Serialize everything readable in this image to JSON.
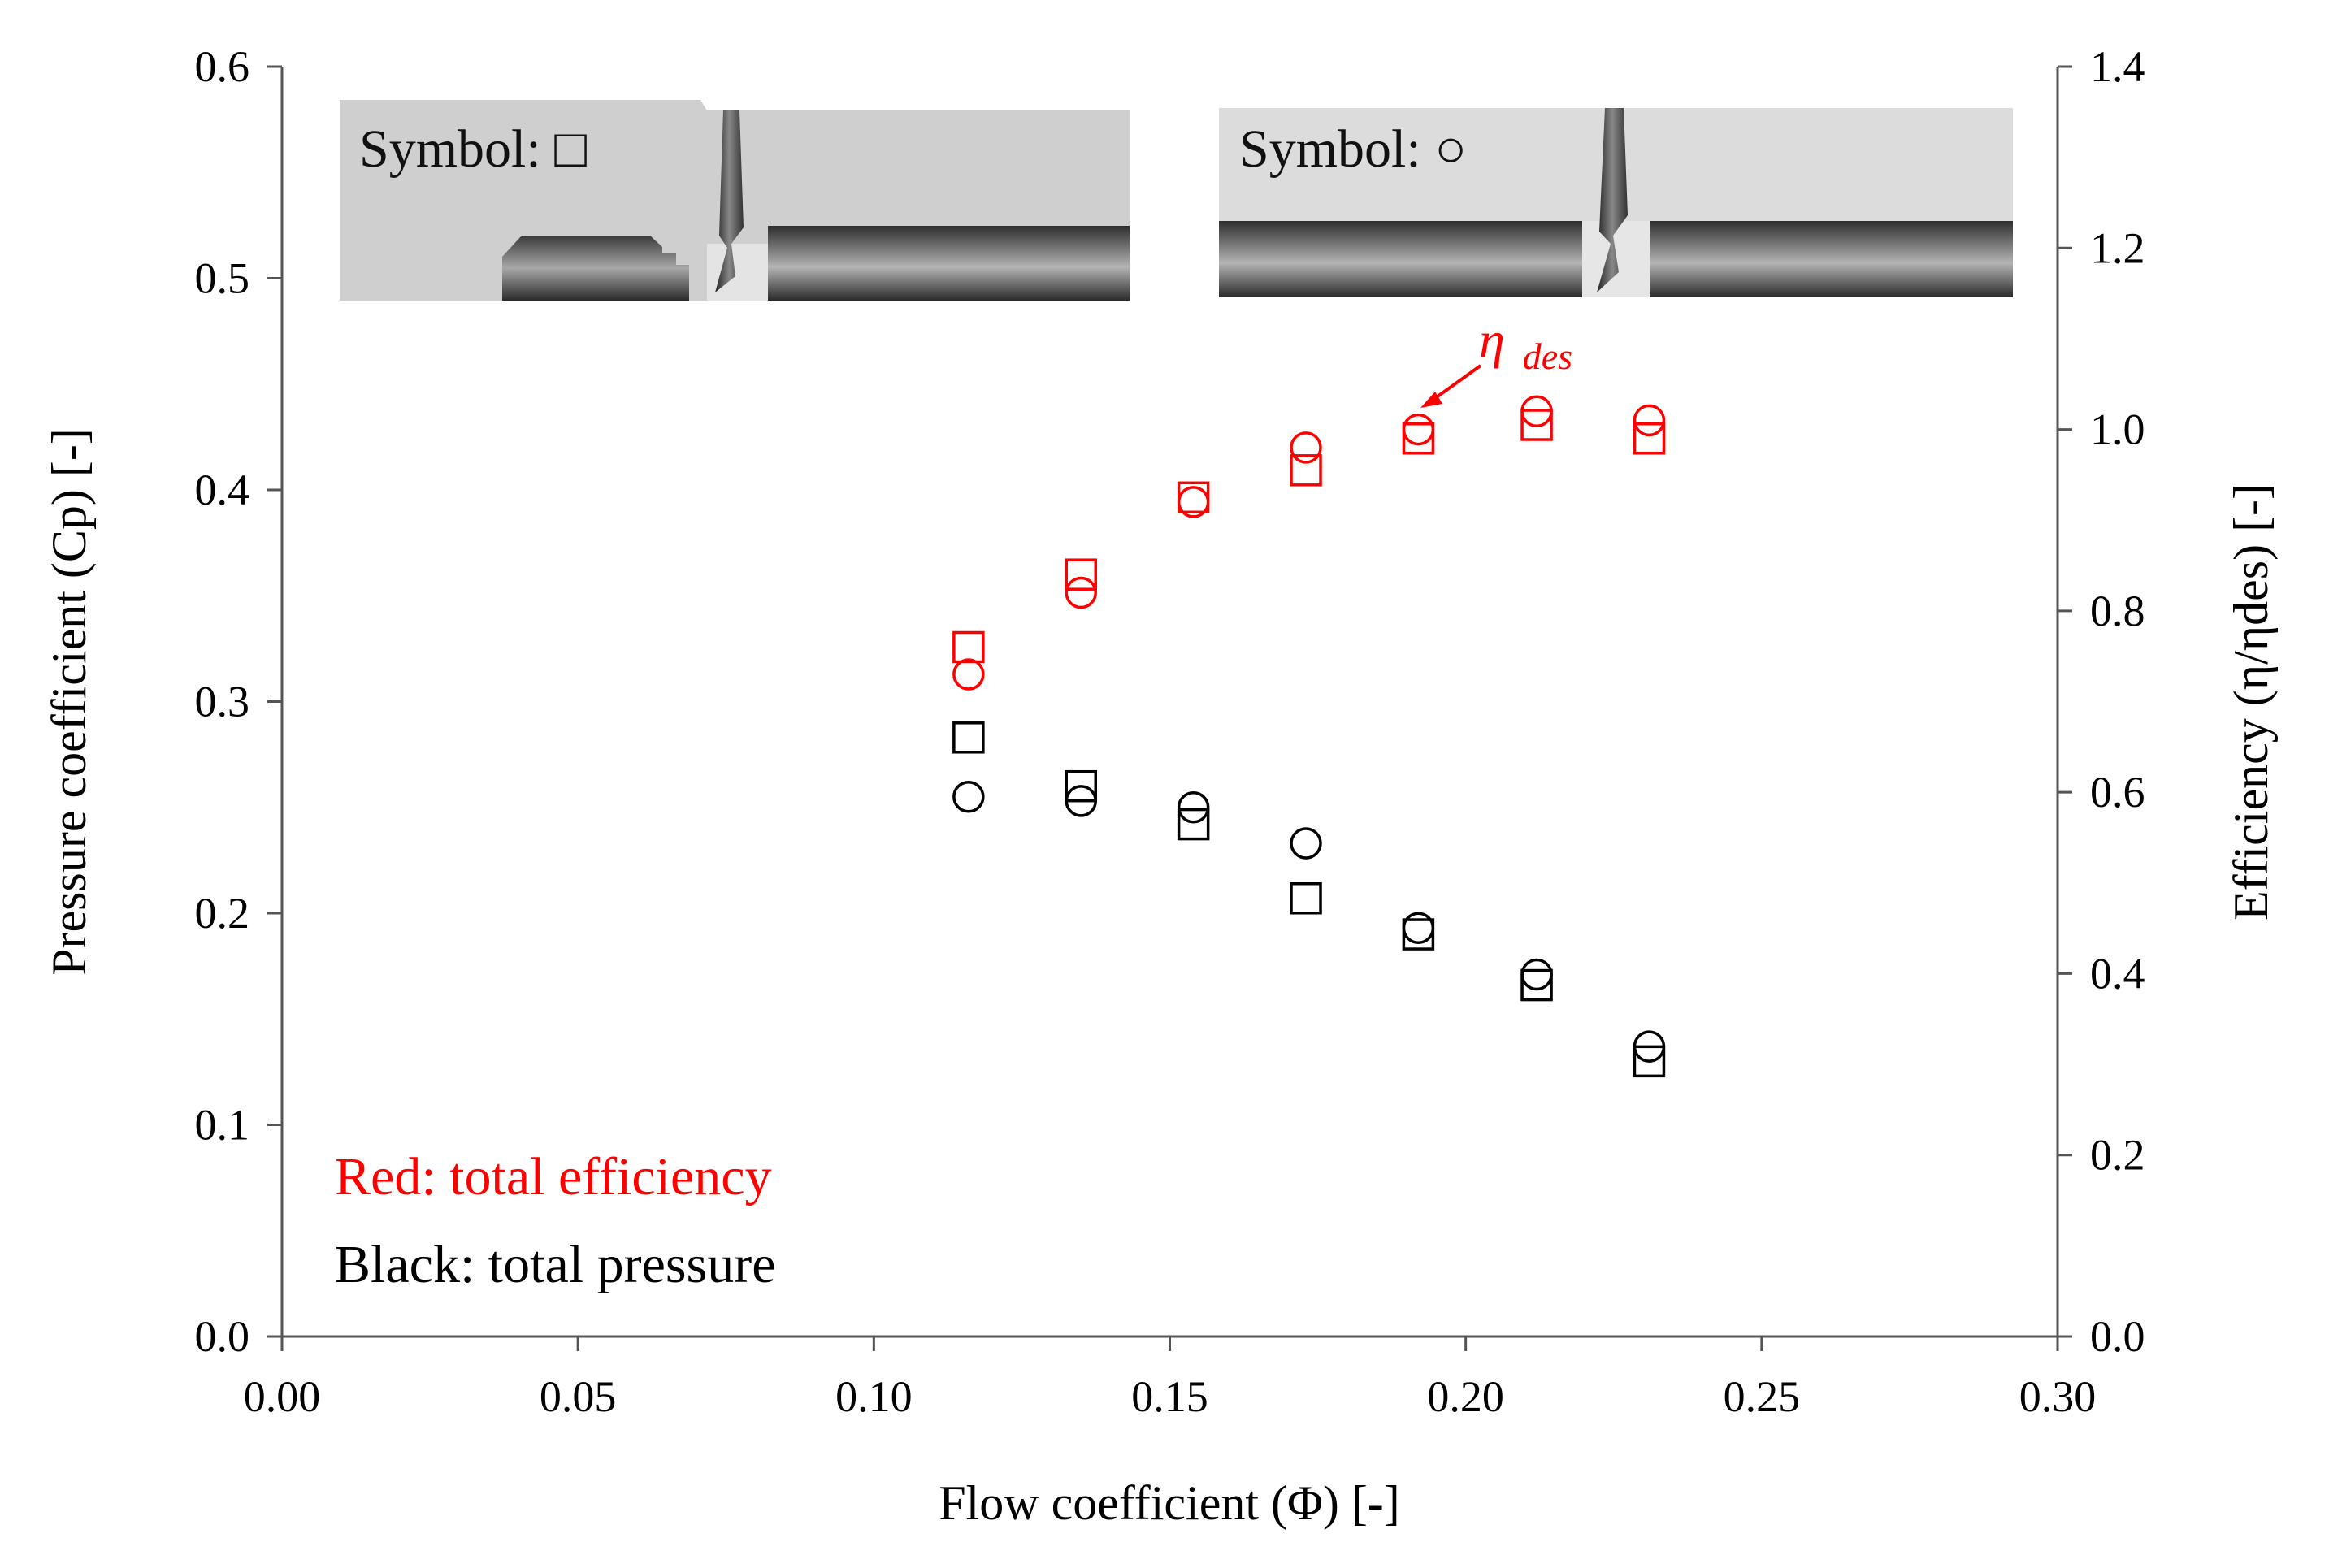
{
  "chart_data": {
    "type": "scatter",
    "xlabel": "Flow coefficient (Φ) [-]",
    "ylabel_left": "Pressure coefficient (Cp) [-]",
    "ylabel_right": "Efficiency (η/ηdes) [-]",
    "xlim": [
      0,
      0.3
    ],
    "ylim_left": [
      0,
      0.6
    ],
    "ylim_right": [
      0,
      1.4
    ],
    "x_ticks": [
      "0.00",
      "0.05",
      "0.10",
      "0.15",
      "0.20",
      "0.25",
      "0.30"
    ],
    "y_left_ticks": [
      "0.0",
      "0.1",
      "0.2",
      "0.3",
      "0.4",
      "0.5",
      "0.6"
    ],
    "y_right_ticks": [
      "0.0",
      "0.2",
      "0.4",
      "0.6",
      "0.8",
      "1.0",
      "1.2",
      "1.4"
    ],
    "x": [
      0.116,
      0.135,
      0.154,
      0.173,
      0.192,
      0.212,
      0.231
    ],
    "series": [
      {
        "name": "Efficiency, square",
        "axis": "right",
        "color": "#ff0000",
        "marker": "square",
        "values": [
          0.76,
          0.84,
          0.925,
          0.955,
          0.99,
          1.005,
          0.99
        ]
      },
      {
        "name": "Efficiency, circle",
        "axis": "right",
        "color": "#ff0000",
        "marker": "circle",
        "values": [
          0.73,
          0.82,
          0.92,
          0.98,
          1.0,
          1.02,
          1.01
        ]
      },
      {
        "name": "Pressure, square",
        "axis": "left",
        "color": "#000000",
        "marker": "square",
        "values": [
          0.283,
          0.26,
          0.242,
          0.207,
          0.19,
          0.166,
          0.13
        ]
      },
      {
        "name": "Pressure, circle",
        "axis": "left",
        "color": "#000000",
        "marker": "circle",
        "values": [
          0.255,
          0.253,
          0.25,
          0.233,
          0.193,
          0.171,
          0.137
        ]
      }
    ],
    "annotation": {
      "text_main": "η",
      "text_sub": "des",
      "x": 0.192,
      "y_right": 1.0
    },
    "legend": {
      "red_label": "Red: total efficiency",
      "black_label": "Black: total pressure",
      "placement": "bottom-left"
    },
    "insets": [
      {
        "label": "Symbol: □"
      },
      {
        "label": "Symbol: ○"
      }
    ],
    "colors": {
      "efficiency": "#ff0000",
      "pressure": "#000000"
    }
  }
}
